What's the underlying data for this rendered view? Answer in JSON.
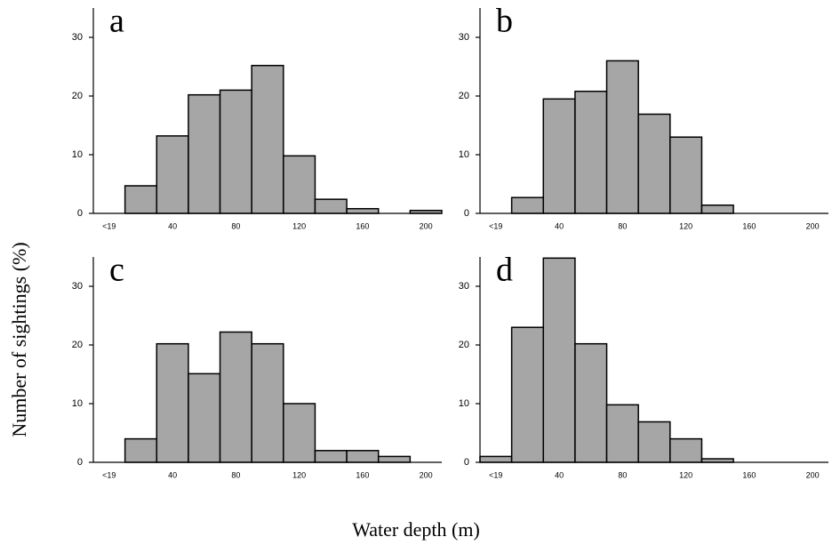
{
  "y_label": "Number of sightings (%)",
  "x_label": "Water depth (m)",
  "chart_data": [
    {
      "type": "bar",
      "title": "a",
      "categories": [
        "<19",
        null,
        "40",
        null,
        "80",
        null,
        "120",
        null,
        "160",
        null,
        "200"
      ],
      "values": [
        0,
        4.7,
        13.2,
        20.2,
        21,
        25.2,
        9.8,
        2.4,
        0.8,
        0,
        0.5
      ],
      "color": "#a6a6a6",
      "ylim": [
        0,
        35
      ],
      "yticks": [
        0,
        10,
        20,
        30
      ]
    },
    {
      "type": "bar",
      "title": "b",
      "categories": [
        "<19",
        null,
        "40",
        null,
        "80",
        null,
        "120",
        null,
        "160",
        null,
        "200"
      ],
      "values": [
        0,
        2.7,
        19.5,
        20.8,
        26,
        16.9,
        13,
        1.4,
        0,
        0,
        0
      ],
      "color": "#a6a6a6",
      "ylim": [
        0,
        35
      ],
      "yticks": [
        0,
        10,
        20,
        30
      ]
    },
    {
      "type": "bar",
      "title": "c",
      "categories": [
        "<19",
        null,
        "40",
        null,
        "80",
        null,
        "120",
        null,
        "160",
        null,
        "200"
      ],
      "values": [
        0,
        4,
        20.2,
        15.1,
        22.2,
        20.2,
        10,
        2,
        2,
        1,
        0
      ],
      "color": "#a6a6a6",
      "ylim": [
        0,
        35
      ],
      "yticks": [
        0,
        10,
        20,
        30
      ]
    },
    {
      "type": "bar",
      "title": "d",
      "categories": [
        "<19",
        null,
        "40",
        null,
        "80",
        null,
        "120",
        null,
        "160",
        null,
        "200"
      ],
      "values": [
        1,
        23,
        34.8,
        20.2,
        9.8,
        6.9,
        4,
        0.6,
        0,
        0,
        0
      ],
      "color": "#a6a6a6",
      "ylim": [
        0,
        35
      ],
      "yticks": [
        0,
        10,
        20,
        30
      ]
    }
  ]
}
